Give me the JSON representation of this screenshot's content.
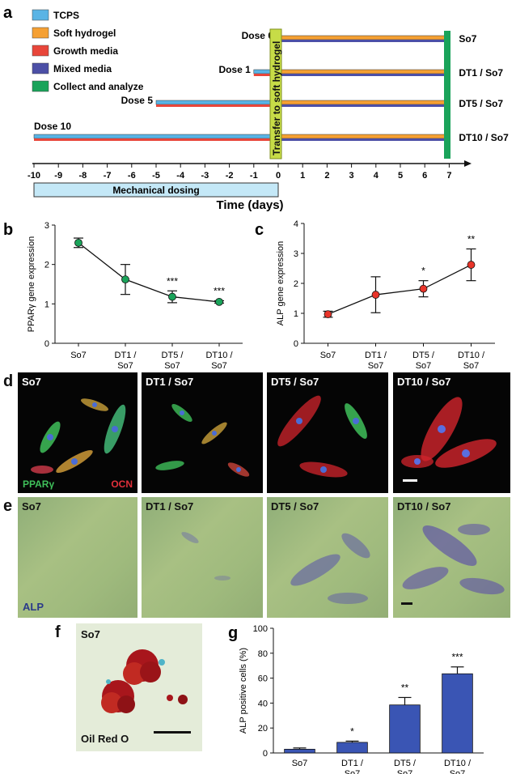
{
  "panel_letters": {
    "a": "a",
    "b": "b",
    "c": "c",
    "d": "d",
    "e": "e",
    "f": "f",
    "g": "g"
  },
  "timeline": {
    "legend": [
      {
        "label": "TCPS",
        "color": "#5ab4e5"
      },
      {
        "label": "Soft hydrogel",
        "color": "#f5a033"
      },
      {
        "label": "Growth media",
        "color": "#e8463a"
      },
      {
        "label": "Mixed media",
        "color": "#4c4fa6"
      },
      {
        "label": "Collect and analyze",
        "color": "#1aa35a"
      }
    ],
    "rows": [
      {
        "dose_label": "Dose 0",
        "start": 0,
        "name": "So7"
      },
      {
        "dose_label": "Dose 1",
        "start": -1,
        "name": "DT1 / So7"
      },
      {
        "dose_label": "Dose 5",
        "start": -5,
        "name": "DT5 / So7"
      },
      {
        "dose_label": "Dose 10",
        "start": -10,
        "name": "DT10 / So7"
      }
    ],
    "transfer_label": "Transfer to soft hydrogel",
    "ticks": [
      "-10",
      "-9",
      "-8",
      "-7",
      "-6",
      "-5",
      "-4",
      "-3",
      "-2",
      "-1",
      "0",
      "1",
      "2",
      "3",
      "4",
      "5",
      "6",
      "7"
    ],
    "dosing_label": "Mechanical dosing",
    "xlabel": "Time (days)"
  },
  "chart_data": [
    {
      "type": "line",
      "ylabel": "PPARγ gene expression",
      "categories": [
        "So7",
        "DT1 / So7",
        "DT5 / So7",
        "DT10 / So7"
      ],
      "values": [
        2.55,
        1.62,
        1.18,
        1.05
      ],
      "errors": [
        0.12,
        0.38,
        0.15,
        0.03
      ],
      "significance": [
        "",
        "",
        "***",
        "***"
      ],
      "ylim": [
        0,
        3
      ],
      "yticks": [
        "0",
        "1",
        "2",
        "3"
      ],
      "color": "#1aa35a"
    },
    {
      "type": "line",
      "ylabel": "ALP gene expression",
      "categories": [
        "So7",
        "DT1 / So7",
        "DT5 / So7",
        "DT10 / So7"
      ],
      "values": [
        0.97,
        1.62,
        1.82,
        2.62
      ],
      "errors": [
        0.1,
        0.6,
        0.27,
        0.53
      ],
      "significance": [
        "",
        "",
        "*",
        "**"
      ],
      "ylim": [
        0,
        4
      ],
      "yticks": [
        "0",
        "1",
        "2",
        "3",
        "4"
      ],
      "color": "#e8342a"
    },
    {
      "type": "bar",
      "ylabel": "ALP positive cells (%)",
      "categories": [
        "So7",
        "DT1 / So7",
        "DT5 / So7",
        "DT10 / So7"
      ],
      "values": [
        3,
        8.5,
        38.5,
        63.5
      ],
      "errors": [
        1,
        1,
        6,
        5.5
      ],
      "significance": [
        "",
        "*",
        "**",
        "***"
      ],
      "ylim": [
        0,
        100
      ],
      "yticks": [
        "0",
        "20",
        "40",
        "60",
        "80",
        "100"
      ],
      "color": "#3a55b4"
    }
  ],
  "micrographs_d": {
    "labels": [
      "So7",
      "DT1 / So7",
      "DT5 / So7",
      "DT10 / So7"
    ],
    "stain_green": "PPARγ",
    "stain_red": "OCN"
  },
  "micrographs_e": {
    "labels": [
      "So7",
      "DT1 / So7",
      "DT5 / So7",
      "DT10 / So7"
    ],
    "stain": "ALP"
  },
  "micrograph_f": {
    "label": "So7",
    "stain": "Oil Red O"
  }
}
